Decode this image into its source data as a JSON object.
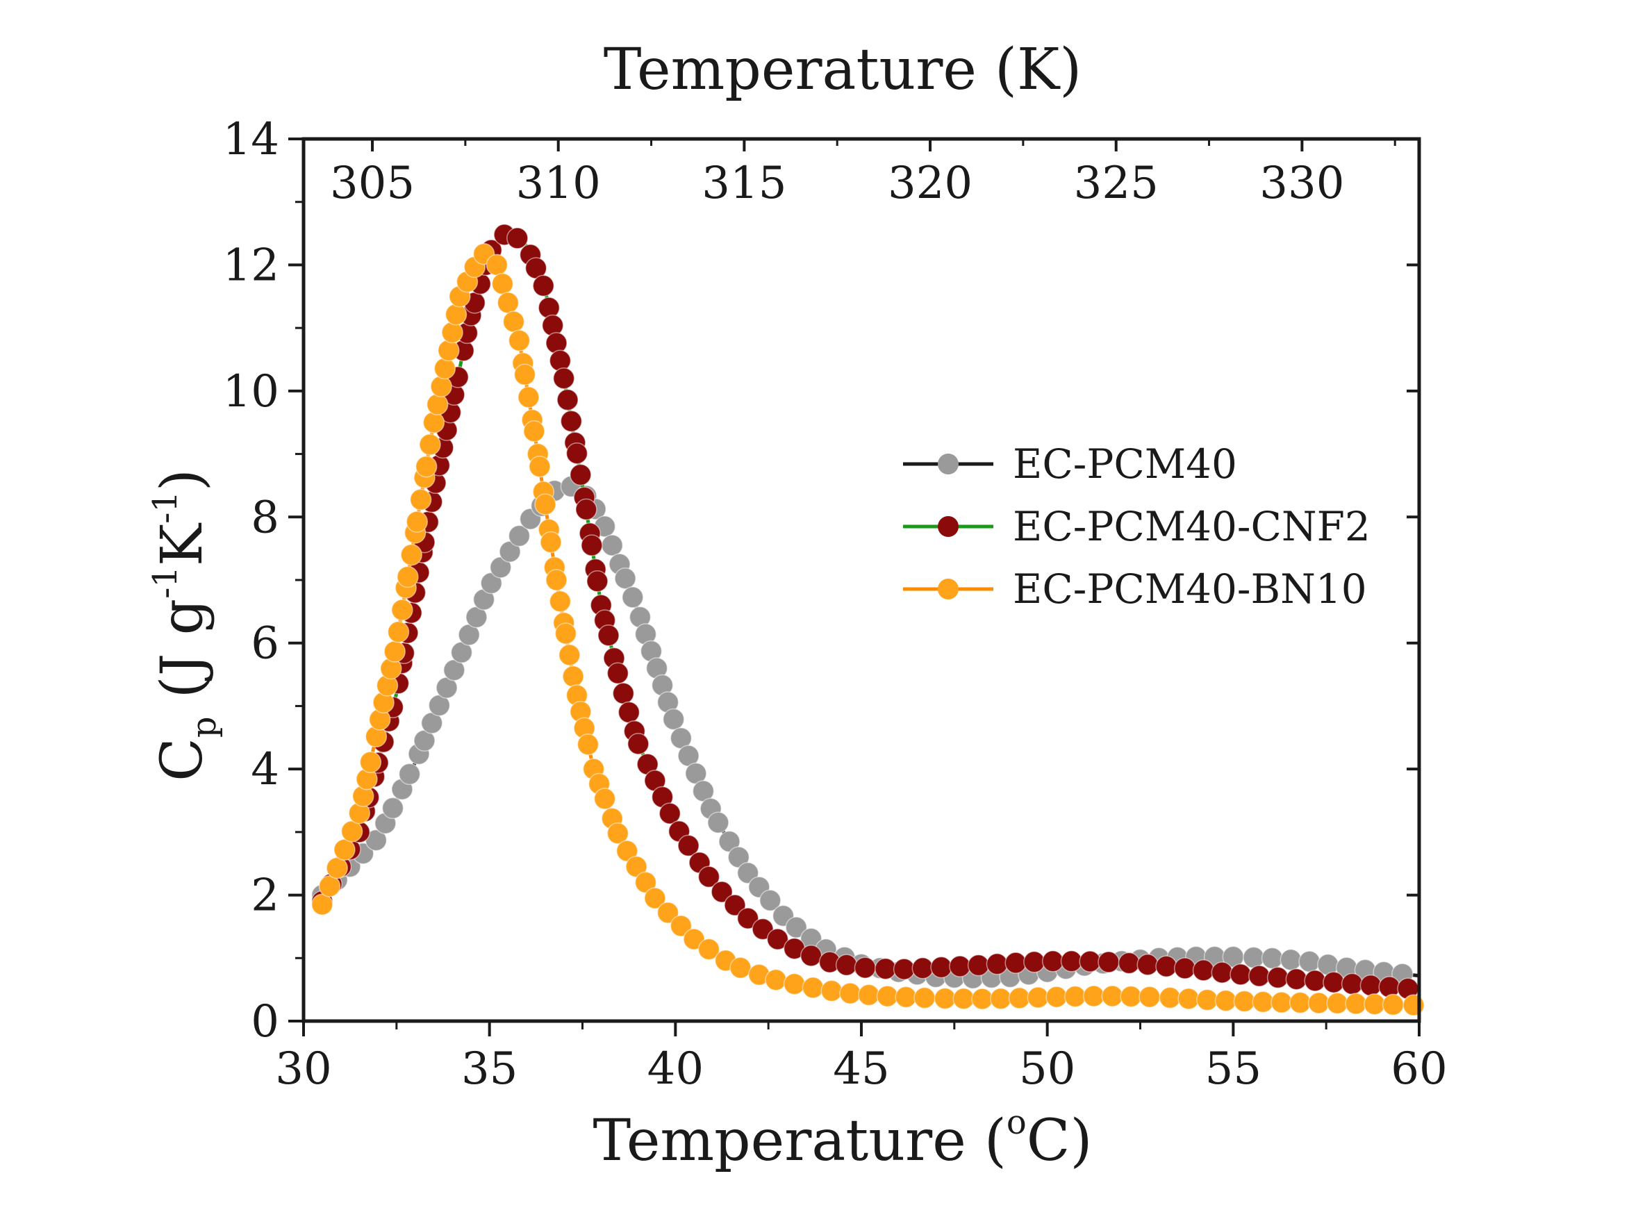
{
  "chart_data": {
    "type": "line",
    "x_axis": {
      "label_prefix": "Temperature (",
      "label_sup": "o",
      "label_suffix": "C)",
      "range": [
        30,
        60
      ],
      "ticks": [
        30,
        35,
        40,
        45,
        50,
        55,
        60
      ]
    },
    "x2_axis": {
      "label": "Temperature (K)",
      "ticks": [
        305,
        310,
        315,
        320,
        325,
        330
      ]
    },
    "y_axis": {
      "label_main": "C",
      "label_sub": "p",
      "label_unit_a": " (J g",
      "label_exp1": "-1",
      "label_unit_b": "K",
      "label_exp2": "-1",
      "label_close": ")",
      "range": [
        0,
        14
      ],
      "ticks": [
        0,
        2,
        4,
        6,
        8,
        10,
        12,
        14
      ]
    },
    "legend": {
      "position": "center-right"
    },
    "series": [
      {
        "name": "EC-PCM40",
        "line_color": "#1a1a1a",
        "marker_color": "#9a9a9a",
        "x": [
          30.5,
          32,
          33,
          34,
          35,
          36,
          36.8,
          37.4,
          38,
          39,
          40,
          41,
          42,
          43,
          44,
          45,
          46,
          47,
          48,
          49,
          50,
          51,
          52,
          53,
          54,
          55,
          56,
          57,
          58,
          59,
          60
        ],
        "y": [
          2.0,
          2.9,
          4.1,
          5.5,
          6.9,
          7.9,
          8.45,
          8.5,
          8.0,
          6.5,
          4.7,
          3.3,
          2.3,
          1.6,
          1.15,
          0.9,
          0.78,
          0.7,
          0.68,
          0.7,
          0.78,
          0.88,
          0.95,
          1.0,
          1.02,
          1.02,
          1.0,
          0.95,
          0.85,
          0.78,
          0.72
        ]
      },
      {
        "name": "EC-PCM40-CNF2",
        "line_color": "#1a9a1a",
        "marker_color": "#8b0a0a",
        "x": [
          30.5,
          31.5,
          32.5,
          33.5,
          34.5,
          35,
          35.5,
          36,
          36.5,
          37,
          37.5,
          38,
          38.5,
          39,
          40,
          41,
          42,
          43,
          44,
          45,
          46,
          47,
          48,
          49,
          50,
          51,
          52,
          53,
          54,
          55,
          56,
          57,
          58,
          59,
          60
        ],
        "y": [
          1.9,
          3.0,
          5.2,
          8.4,
          11.2,
          12.2,
          12.55,
          12.3,
          11.6,
          10.2,
          8.5,
          6.6,
          5.4,
          4.4,
          3.1,
          2.2,
          1.6,
          1.2,
          0.95,
          0.85,
          0.82,
          0.85,
          0.88,
          0.92,
          0.95,
          0.95,
          0.93,
          0.88,
          0.82,
          0.75,
          0.7,
          0.65,
          0.6,
          0.55,
          0.5
        ]
      },
      {
        "name": "EC-PCM40-BN10",
        "line_color": "#ff8c00",
        "marker_color": "#ffa31a",
        "x": [
          30.5,
          31.5,
          32.5,
          33.5,
          34.2,
          34.8,
          35.2,
          35.8,
          36.3,
          36.8,
          37.3,
          37.8,
          38.5,
          39.5,
          40.5,
          41.5,
          42.5,
          43.5,
          44.5,
          45.5,
          47,
          48.5,
          50,
          51.5,
          53,
          54.5,
          56,
          58,
          60
        ],
        "y": [
          1.85,
          3.3,
          6.0,
          9.5,
          11.5,
          12.2,
          12.0,
          10.8,
          9.0,
          7.0,
          5.3,
          4.0,
          2.9,
          1.9,
          1.3,
          0.9,
          0.68,
          0.55,
          0.45,
          0.4,
          0.36,
          0.35,
          0.38,
          0.4,
          0.38,
          0.33,
          0.3,
          0.28,
          0.25
        ]
      }
    ]
  }
}
